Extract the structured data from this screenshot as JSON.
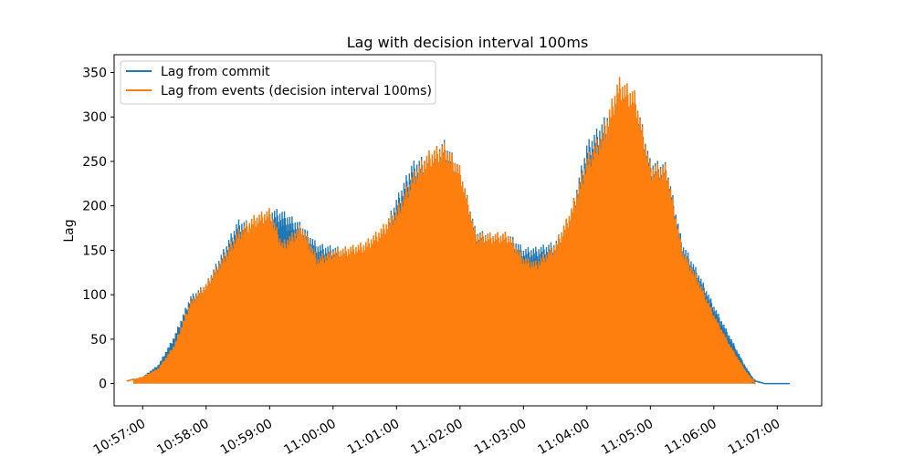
{
  "chart_data": {
    "type": "line",
    "title": "Lag with decision interval 100ms",
    "xlabel": "",
    "ylabel": "Lag",
    "ylim": [
      -25,
      370
    ],
    "xlim_minutes_after_10_56": [
      0.55,
      11.7
    ],
    "yticks": [
      0,
      50,
      100,
      150,
      200,
      250,
      300,
      350
    ],
    "xticks": [
      {
        "label": "10:57:00",
        "minute": 1
      },
      {
        "label": "10:58:00",
        "minute": 2
      },
      {
        "label": "10:59:00",
        "minute": 3
      },
      {
        "label": "11:00:00",
        "minute": 4
      },
      {
        "label": "11:01:00",
        "minute": 5
      },
      {
        "label": "11:02:00",
        "minute": 6
      },
      {
        "label": "11:03:00",
        "minute": 7
      },
      {
        "label": "11:04:00",
        "minute": 8
      },
      {
        "label": "11:05:00",
        "minute": 9
      },
      {
        "label": "11:06:00",
        "minute": 10
      },
      {
        "label": "11:07:00",
        "minute": 11
      }
    ],
    "legend_position": "top-left",
    "grid": false,
    "series": [
      {
        "name": "Lag from commit",
        "color": "#1f77b4",
        "x": [
          0.75,
          1.0,
          1.25,
          1.5,
          1.75,
          2.0,
          2.3,
          2.5,
          2.75,
          3.0,
          3.2,
          3.5,
          3.75,
          4.0,
          4.3,
          4.5,
          4.75,
          5.0,
          5.25,
          5.5,
          5.75,
          6.0,
          6.25,
          6.5,
          6.75,
          7.0,
          7.2,
          7.5,
          7.75,
          8.0,
          8.25,
          8.5,
          8.75,
          9.0,
          9.25,
          9.5,
          9.75,
          10.0,
          10.25,
          10.5,
          10.65,
          10.8,
          11.0,
          11.2
        ],
        "y": [
          3,
          8,
          22,
          55,
          100,
          115,
          157,
          187,
          185,
          200,
          198,
          183,
          160,
          157,
          153,
          150,
          168,
          212,
          253,
          262,
          278,
          248,
          175,
          172,
          173,
          155,
          156,
          162,
          198,
          275,
          300,
          335,
          335,
          255,
          252,
          162,
          128,
          90,
          55,
          20,
          3,
          0,
          0,
          0
        ]
      },
      {
        "name": "Lag from events (decision interval 100ms)",
        "color": "#ff7f0e",
        "x": [
          0.75,
          1.0,
          1.25,
          1.5,
          1.75,
          2.0,
          2.3,
          2.5,
          2.75,
          3.0,
          3.2,
          3.5,
          3.75,
          4.0,
          4.3,
          4.5,
          4.75,
          5.0,
          5.25,
          5.5,
          5.75,
          6.0,
          6.25,
          6.5,
          6.75,
          7.0,
          7.2,
          7.5,
          7.75,
          8.0,
          8.25,
          8.5,
          8.75,
          9.0,
          9.25,
          9.5,
          9.75,
          10.0,
          10.25,
          10.5,
          10.65
        ],
        "y": [
          3,
          8,
          18,
          45,
          95,
          115,
          150,
          175,
          192,
          200,
          162,
          182,
          145,
          153,
          158,
          162,
          178,
          200,
          240,
          265,
          275,
          248,
          172,
          172,
          173,
          145,
          140,
          160,
          200,
          260,
          290,
          350,
          335,
          250,
          250,
          155,
          120,
          80,
          45,
          15,
          0
        ]
      }
    ]
  }
}
